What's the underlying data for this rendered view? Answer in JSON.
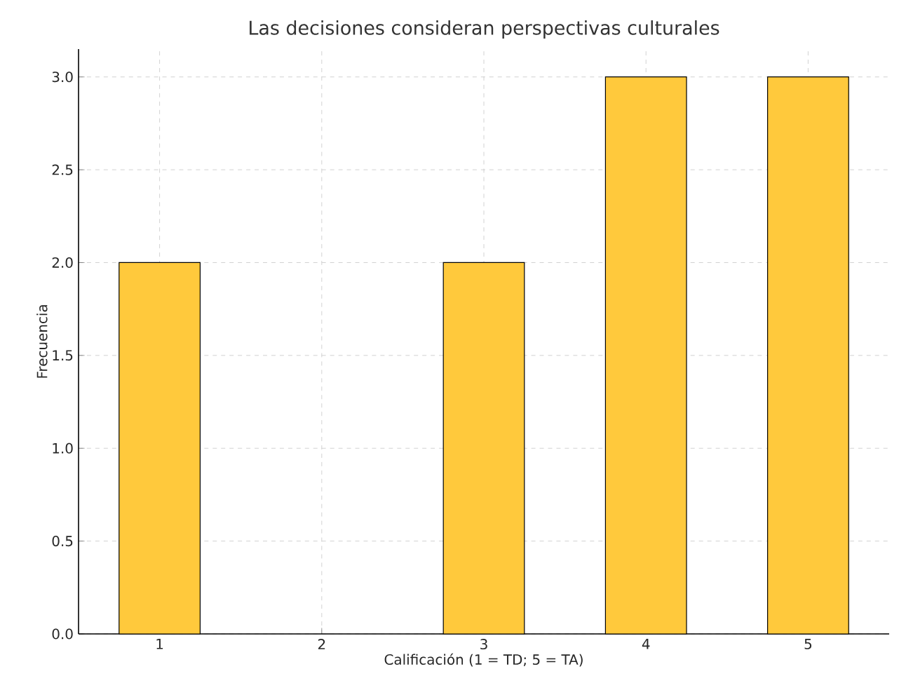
{
  "chart_data": {
    "type": "bar",
    "title": "Las decisiones consideran perspectivas culturales",
    "xlabel": "Calificación (1 = TD; 5 = TA)",
    "ylabel": "Frecuencia",
    "x": [
      1,
      2,
      3,
      4,
      5
    ],
    "values": [
      2,
      0,
      2,
      3,
      3
    ],
    "color": "#ffc93c",
    "xlim": [
      0.5,
      5.5
    ],
    "xticks": [
      1,
      2,
      3,
      4,
      5
    ],
    "ylim": [
      0,
      3.15
    ],
    "yticks": [
      {
        "value": 0,
        "label": "0.0"
      },
      {
        "value": 0.5,
        "label": "0.5"
      },
      {
        "value": 1,
        "label": "1.0"
      },
      {
        "value": 1.5,
        "label": "1.5"
      },
      {
        "value": 2,
        "label": "2.0"
      },
      {
        "value": 2.5,
        "label": "2.5"
      },
      {
        "value": 3,
        "label": "3.0"
      }
    ],
    "grid": true
  }
}
